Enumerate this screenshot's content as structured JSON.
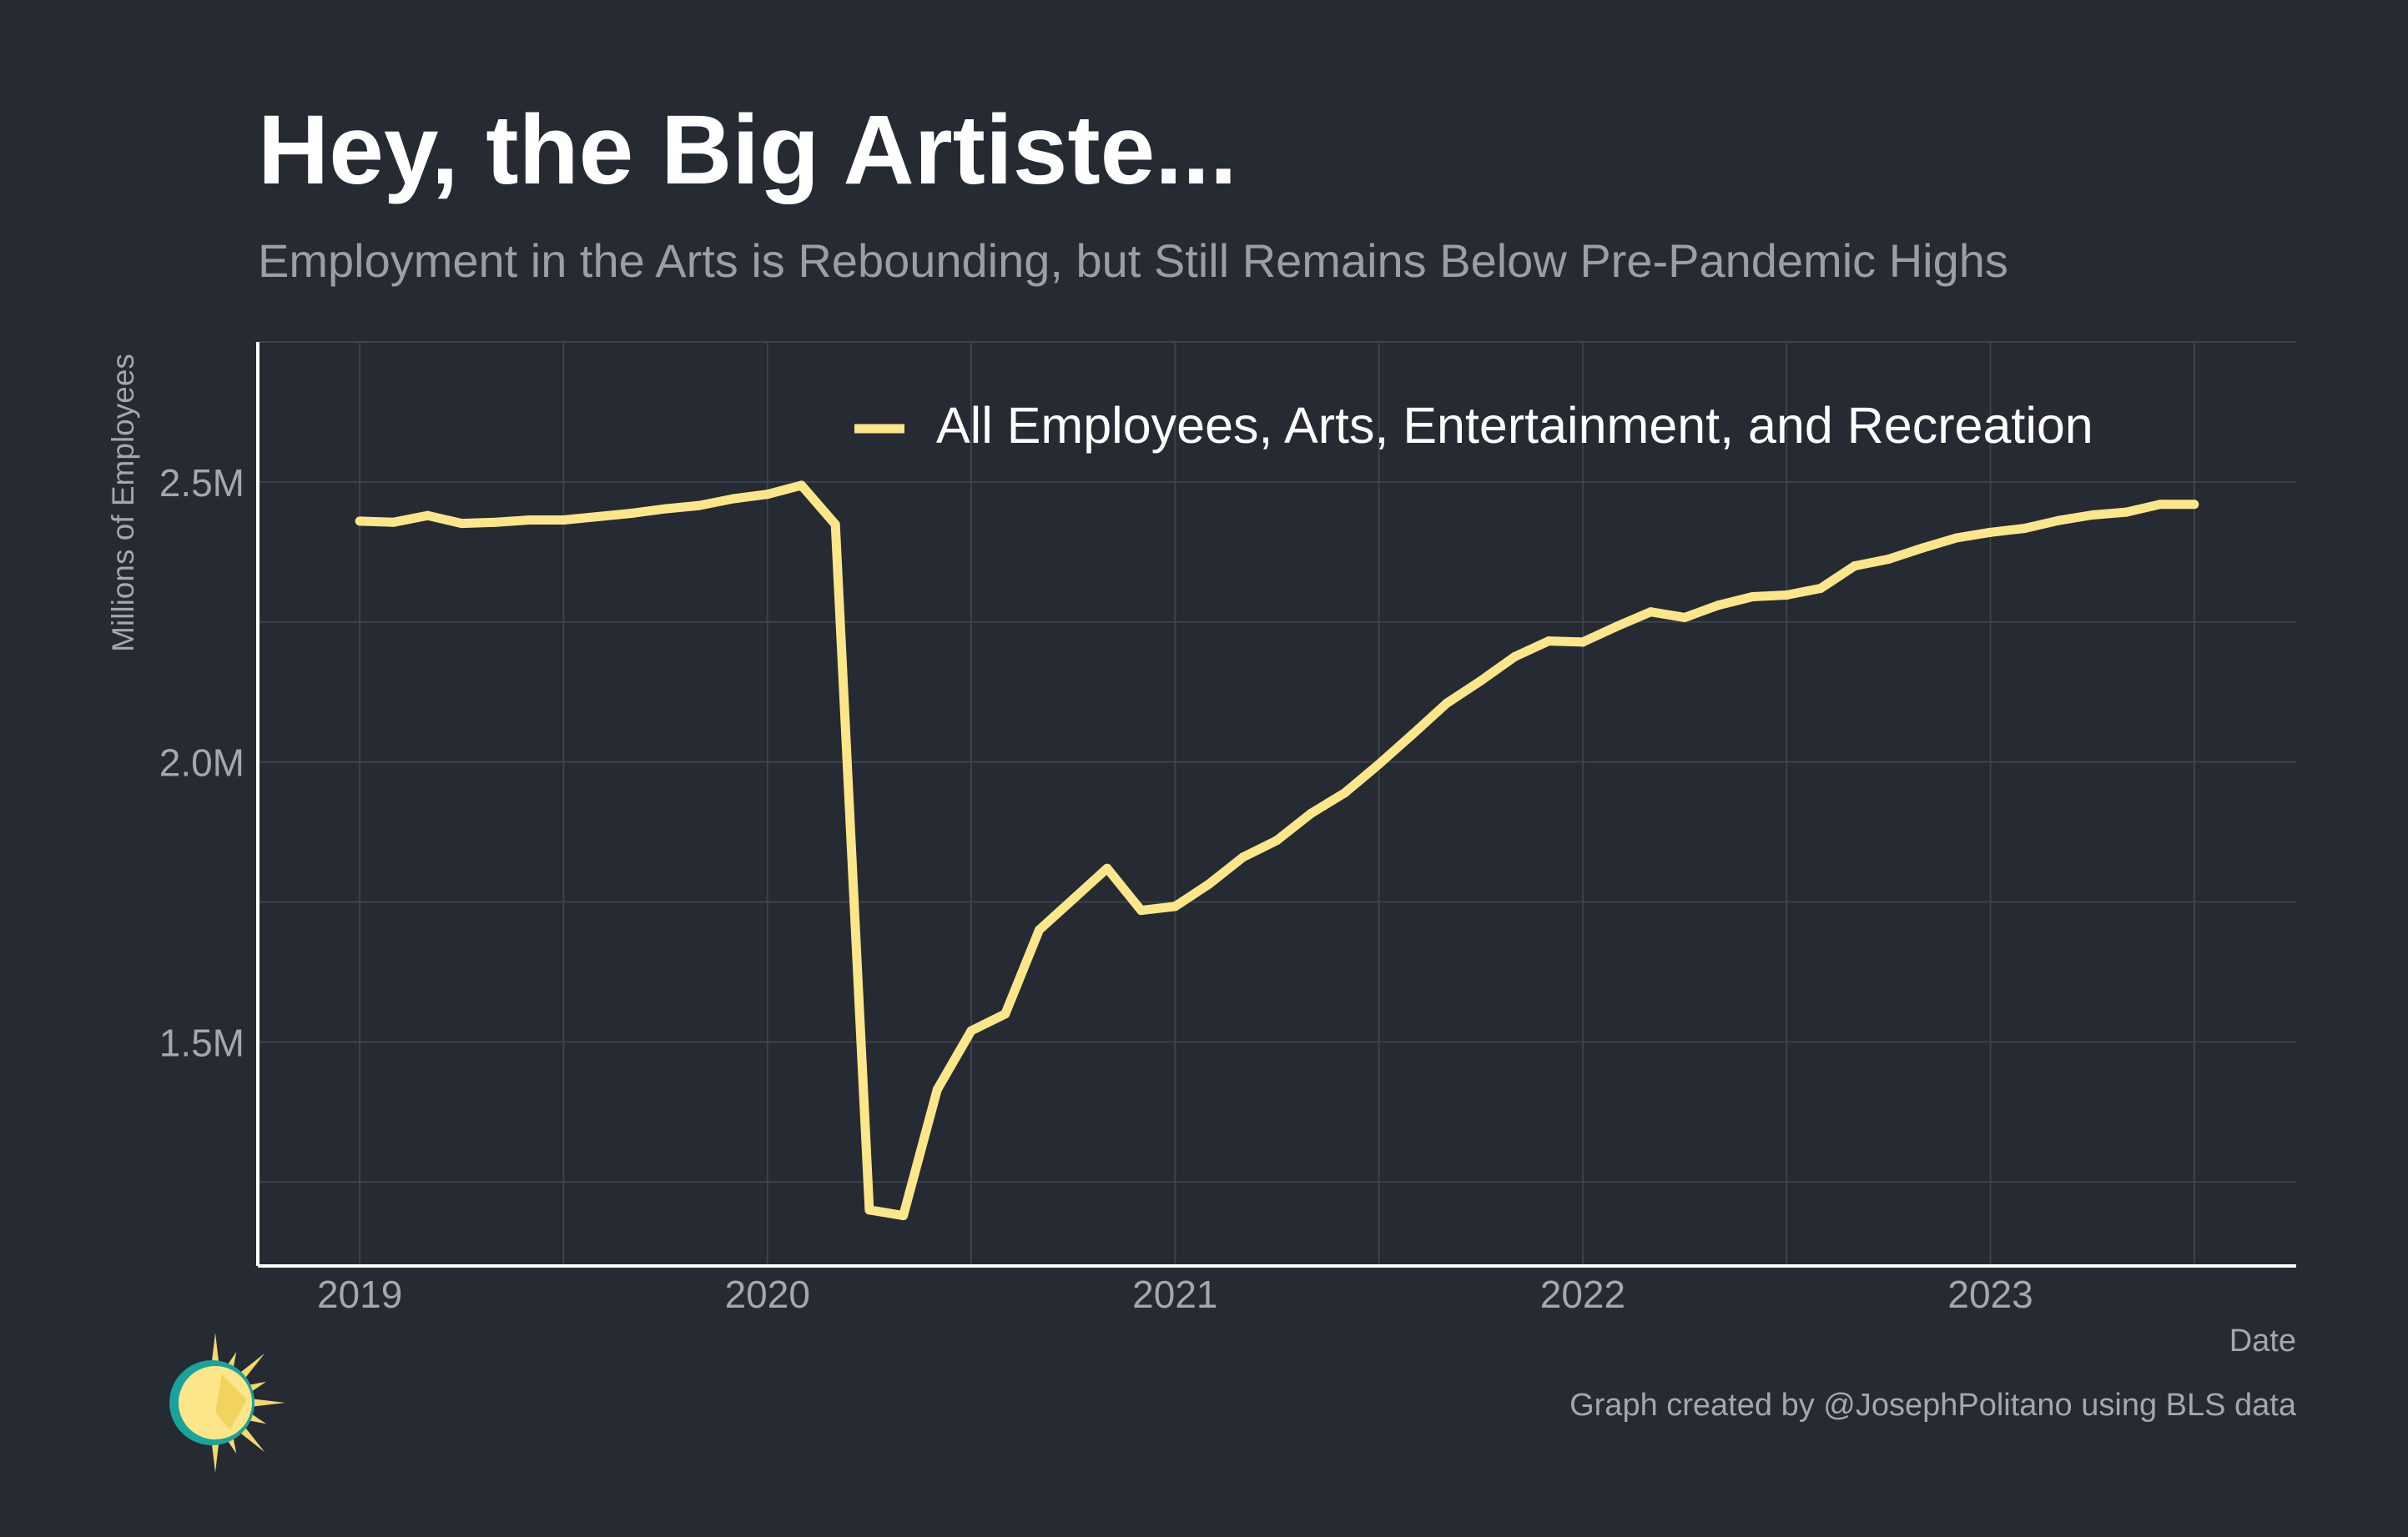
{
  "title": "Hey, the Big Artiste...",
  "subtitle": "Employment in the Arts is Rebounding, but Still Remains Below Pre-Pandemic Highs",
  "caption": "Graph created by @JosephPolitano using BLS data",
  "colors": {
    "background": "#252a33",
    "line": "#fde68a",
    "grid": "#3d424b",
    "axis": "#ffffff",
    "tick_text": "#a4a7ad"
  },
  "logo": {
    "icon": "sun-logo-icon"
  },
  "chart_data": {
    "type": "line",
    "xlabel": "Date",
    "ylabel": "Millions of Employees",
    "x_ticks": [
      "2019",
      "2020",
      "2021",
      "2022",
      "2023"
    ],
    "y_ticks": [
      "1.5M",
      "2.0M",
      "2.5M"
    ],
    "y_tick_values": [
      1.5,
      2.0,
      2.5
    ],
    "xlim": [
      "2018-10",
      "2023-10"
    ],
    "ylim": [
      1.1,
      2.75
    ],
    "grid": true,
    "legend_position": "top-center",
    "series": [
      {
        "name": "All Employees, Arts, Entertainment, and Recreation",
        "color": "#fde68a",
        "points": [
          [
            "2019-01",
            2.43
          ],
          [
            "2019-02",
            2.428
          ],
          [
            "2019-03",
            2.44
          ],
          [
            "2019-04",
            2.426
          ],
          [
            "2019-05",
            2.428
          ],
          [
            "2019-06",
            2.432
          ],
          [
            "2019-07",
            2.432
          ],
          [
            "2019-08",
            2.438
          ],
          [
            "2019-09",
            2.444
          ],
          [
            "2019-10",
            2.452
          ],
          [
            "2019-11",
            2.458
          ],
          [
            "2019-12",
            2.47
          ],
          [
            "2020-01",
            2.478
          ],
          [
            "2020-02",
            2.494
          ],
          [
            "2020-03",
            2.424
          ],
          [
            "2020-04",
            1.2
          ],
          [
            "2020-05",
            1.19
          ],
          [
            "2020-06",
            1.415
          ],
          [
            "2020-07",
            1.52
          ],
          [
            "2020-08",
            1.55
          ],
          [
            "2020-09",
            1.7
          ],
          [
            "2020-10",
            1.755
          ],
          [
            "2020-11",
            1.81
          ],
          [
            "2020-12",
            1.735
          ],
          [
            "2021-01",
            1.742
          ],
          [
            "2021-02",
            1.782
          ],
          [
            "2021-03",
            1.83
          ],
          [
            "2021-04",
            1.86
          ],
          [
            "2021-05",
            1.908
          ],
          [
            "2021-06",
            1.945
          ],
          [
            "2021-07",
            1.996
          ],
          [
            "2021-08",
            2.05
          ],
          [
            "2021-09",
            2.105
          ],
          [
            "2021-10",
            2.145
          ],
          [
            "2021-11",
            2.188
          ],
          [
            "2021-12",
            2.216
          ],
          [
            "2022-01",
            2.214
          ],
          [
            "2022-02",
            2.242
          ],
          [
            "2022-03",
            2.268
          ],
          [
            "2022-04",
            2.258
          ],
          [
            "2022-05",
            2.28
          ],
          [
            "2022-06",
            2.295
          ],
          [
            "2022-07",
            2.298
          ],
          [
            "2022-08",
            2.31
          ],
          [
            "2022-09",
            2.35
          ],
          [
            "2022-10",
            2.362
          ],
          [
            "2022-11",
            2.382
          ],
          [
            "2022-12",
            2.4
          ],
          [
            "2023-01",
            2.41
          ],
          [
            "2023-02",
            2.417
          ],
          [
            "2023-03",
            2.431
          ],
          [
            "2023-04",
            2.441
          ],
          [
            "2023-05",
            2.446
          ],
          [
            "2023-06",
            2.46
          ],
          [
            "2023-07",
            2.46
          ]
        ]
      }
    ]
  }
}
